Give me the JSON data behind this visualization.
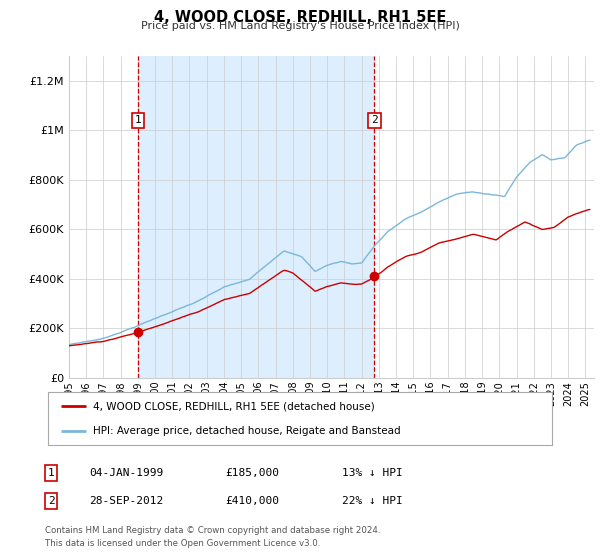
{
  "title": "4, WOOD CLOSE, REDHILL, RH1 5EE",
  "subtitle": "Price paid vs. HM Land Registry's House Price Index (HPI)",
  "ylabel_ticks": [
    "£0",
    "£200K",
    "£400K",
    "£600K",
    "£800K",
    "£1M",
    "£1.2M"
  ],
  "ylim": [
    0,
    1300000
  ],
  "xlim_start": 1995.0,
  "xlim_end": 2025.5,
  "sale1_year": 1999.02,
  "sale1_price": 185000,
  "sale2_year": 2012.74,
  "sale2_price": 410000,
  "legend_line1": "4, WOOD CLOSE, REDHILL, RH1 5EE (detached house)",
  "legend_line2": "HPI: Average price, detached house, Reigate and Banstead",
  "annotation1_date": "04-JAN-1999",
  "annotation1_price": "£185,000",
  "annotation1_hpi": "13% ↓ HPI",
  "annotation2_date": "28-SEP-2012",
  "annotation2_price": "£410,000",
  "annotation2_hpi": "22% ↓ HPI",
  "footer1": "Contains HM Land Registry data © Crown copyright and database right 2024.",
  "footer2": "This data is licensed under the Open Government Licence v3.0.",
  "hpi_color": "#7ab8d8",
  "price_color": "#cc0000",
  "sale_dot_color": "#cc0000",
  "vline_color": "#cc0000",
  "shaded_region_color": "#ddeeff",
  "background_color": "#ffffff",
  "grid_color": "#cccccc"
}
